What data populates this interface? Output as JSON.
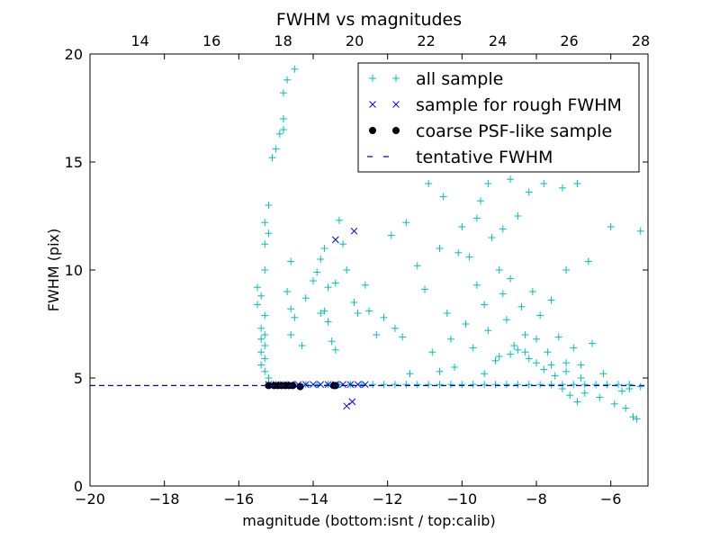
{
  "chart_data": {
    "type": "scatter",
    "title": "FWHM vs magnitudes",
    "xlabel": "magnitude (bottom:isnt / top:calib)",
    "ylabel": "FWHM (pix)",
    "xlim": [
      -20,
      -5
    ],
    "ylim": [
      0,
      20
    ],
    "top_xlim": [
      12.6,
      28.2
    ],
    "x_ticks": [
      -20,
      -18,
      -16,
      -14,
      -12,
      -10,
      -8,
      -6
    ],
    "x_tick_labels": [
      "−20",
      "−18",
      "−16",
      "−14",
      "−12",
      "−10",
      "−8",
      "−6"
    ],
    "top_ticks": [
      14,
      16,
      18,
      20,
      22,
      24,
      26,
      28
    ],
    "top_tick_labels": [
      "14",
      "16",
      "18",
      "20",
      "22",
      "24",
      "26",
      "28"
    ],
    "y_ticks": [
      0,
      5,
      10,
      15,
      20
    ],
    "y_tick_labels": [
      "0",
      "5",
      "10",
      "15",
      "20"
    ],
    "grid": false,
    "legend_position": "top-right",
    "series": [
      {
        "name": "all sample",
        "marker": "plus",
        "color": "#00BFBF",
        "points": [
          [
            -15.2,
            4.7
          ],
          [
            -15.0,
            4.7
          ],
          [
            -14.8,
            4.7
          ],
          [
            -14.5,
            4.7
          ],
          [
            -14.2,
            4.7
          ],
          [
            -13.9,
            4.7
          ],
          [
            -13.6,
            4.7
          ],
          [
            -13.3,
            4.7
          ],
          [
            -13.0,
            4.7
          ],
          [
            -12.7,
            4.7
          ],
          [
            -12.4,
            4.7
          ],
          [
            -12.1,
            4.7
          ],
          [
            -11.8,
            4.7
          ],
          [
            -11.5,
            4.7
          ],
          [
            -11.2,
            4.7
          ],
          [
            -10.9,
            4.7
          ],
          [
            -10.6,
            4.7
          ],
          [
            -10.3,
            4.7
          ],
          [
            -10.0,
            4.7
          ],
          [
            -9.7,
            4.7
          ],
          [
            -9.4,
            4.7
          ],
          [
            -9.1,
            4.7
          ],
          [
            -8.8,
            4.7
          ],
          [
            -8.5,
            4.7
          ],
          [
            -8.2,
            4.7
          ],
          [
            -7.9,
            4.7
          ],
          [
            -7.6,
            4.7
          ],
          [
            -7.3,
            4.7
          ],
          [
            -7.0,
            4.7
          ],
          [
            -6.7,
            4.7
          ],
          [
            -6.4,
            4.7
          ],
          [
            -6.1,
            4.7
          ],
          [
            -5.8,
            4.7
          ],
          [
            -5.5,
            4.7
          ],
          [
            -5.2,
            4.6
          ],
          [
            -15.5,
            9.2
          ],
          [
            -15.4,
            8.8
          ],
          [
            -15.5,
            8.4
          ],
          [
            -15.3,
            7.9
          ],
          [
            -15.4,
            7.3
          ],
          [
            -15.3,
            7.0
          ],
          [
            -15.4,
            6.8
          ],
          [
            -15.3,
            6.5
          ],
          [
            -15.4,
            6.2
          ],
          [
            -15.3,
            5.9
          ],
          [
            -15.4,
            5.6
          ],
          [
            -15.3,
            5.3
          ],
          [
            -15.2,
            5.0
          ],
          [
            -15.3,
            10.0
          ],
          [
            -15.3,
            12.2
          ],
          [
            -15.2,
            11.7
          ],
          [
            -15.3,
            11.2
          ],
          [
            -15.2,
            13.0
          ],
          [
            -15.1,
            15.2
          ],
          [
            -15.0,
            15.6
          ],
          [
            -14.9,
            16.3
          ],
          [
            -14.8,
            16.5
          ],
          [
            -14.8,
            17.0
          ],
          [
            -14.7,
            18.8
          ],
          [
            -14.8,
            18.2
          ],
          [
            -14.5,
            19.3
          ],
          [
            -14.6,
            10.4
          ],
          [
            -14.7,
            9.0
          ],
          [
            -14.6,
            8.2
          ],
          [
            -14.5,
            7.8
          ],
          [
            -14.6,
            7.0
          ],
          [
            -14.3,
            6.5
          ],
          [
            -14.2,
            8.7
          ],
          [
            -14.0,
            9.5
          ],
          [
            -13.9,
            9.9
          ],
          [
            -13.8,
            10.5
          ],
          [
            -13.7,
            11.0
          ],
          [
            -13.8,
            8.0
          ],
          [
            -13.7,
            8.1
          ],
          [
            -13.6,
            7.6
          ],
          [
            -13.5,
            6.7
          ],
          [
            -13.4,
            6.3
          ],
          [
            -13.6,
            9.2
          ],
          [
            -13.4,
            9.4
          ],
          [
            -13.3,
            12.3
          ],
          [
            -13.2,
            11.2
          ],
          [
            -13.1,
            10.0
          ],
          [
            -12.9,
            8.5
          ],
          [
            -12.6,
            9.3
          ],
          [
            -12.5,
            8.1
          ],
          [
            -12.3,
            7.0
          ],
          [
            -12.1,
            7.8
          ],
          [
            -11.9,
            11.6
          ],
          [
            -11.8,
            7.3
          ],
          [
            -11.6,
            6.9
          ],
          [
            -11.4,
            5.2
          ],
          [
            -11.2,
            10.2
          ],
          [
            -11.0,
            9.1
          ],
          [
            -10.9,
            14.0
          ],
          [
            -10.8,
            6.2
          ],
          [
            -10.6,
            11.0
          ],
          [
            -10.4,
            8.0
          ],
          [
            -10.3,
            6.8
          ],
          [
            -10.2,
            5.5
          ],
          [
            -10.0,
            12.0
          ],
          [
            -9.9,
            7.5
          ],
          [
            -9.8,
            10.6
          ],
          [
            -9.7,
            6.4
          ],
          [
            -9.6,
            9.3
          ],
          [
            -9.5,
            13.2
          ],
          [
            -9.4,
            8.4
          ],
          [
            -9.3,
            7.2
          ],
          [
            -9.2,
            11.5
          ],
          [
            -9.1,
            5.8
          ],
          [
            -9.0,
            10.0
          ],
          [
            -8.9,
            8.9
          ],
          [
            -8.8,
            7.7
          ],
          [
            -8.7,
            9.6
          ],
          [
            -8.6,
            6.5
          ],
          [
            -8.5,
            12.5
          ],
          [
            -8.4,
            8.3
          ],
          [
            -8.3,
            7.0
          ],
          [
            -8.2,
            5.9
          ],
          [
            -8.1,
            9.0
          ],
          [
            -8.0,
            6.8
          ],
          [
            -7.9,
            7.9
          ],
          [
            -7.8,
            5.4
          ],
          [
            -7.7,
            6.2
          ],
          [
            -7.6,
            8.6
          ],
          [
            -7.5,
            5.1
          ],
          [
            -7.4,
            6.9
          ],
          [
            -7.3,
            4.5
          ],
          [
            -7.2,
            5.7
          ],
          [
            -7.1,
            4.2
          ],
          [
            -7.0,
            6.4
          ],
          [
            -6.9,
            3.9
          ],
          [
            -6.8,
            5.0
          ],
          [
            -6.7,
            4.3
          ],
          [
            -6.6,
            10.4
          ],
          [
            -6.5,
            6.6
          ],
          [
            -6.3,
            4.1
          ],
          [
            -6.2,
            5.2
          ],
          [
            -6.0,
            12.0
          ],
          [
            -5.9,
            3.8
          ],
          [
            -5.7,
            4.4
          ],
          [
            -5.6,
            3.6
          ],
          [
            -5.5,
            4.5
          ],
          [
            -5.4,
            3.2
          ],
          [
            -5.3,
            3.1
          ],
          [
            -5.2,
            11.8
          ],
          [
            -9.3,
            14.0
          ],
          [
            -8.7,
            14.2
          ],
          [
            -8.2,
            13.6
          ],
          [
            -7.8,
            14.0
          ],
          [
            -7.3,
            13.8
          ],
          [
            -6.9,
            14.0
          ],
          [
            -9.6,
            12.4
          ],
          [
            -8.9,
            11.9
          ],
          [
            -7.2,
            10.0
          ],
          [
            -10.5,
            13.4
          ],
          [
            -11.5,
            12.2
          ],
          [
            -12.8,
            8.0
          ],
          [
            -10.1,
            10.8
          ],
          [
            -9.0,
            6.0
          ],
          [
            -8.7,
            6.1
          ],
          [
            -8.5,
            6.3
          ],
          [
            -8.3,
            6.2
          ],
          [
            -8.0,
            5.7
          ],
          [
            -7.6,
            5.6
          ],
          [
            -7.2,
            5.3
          ],
          [
            -6.8,
            5.6
          ],
          [
            -9.4,
            5.2
          ],
          [
            -10.6,
            5.3
          ]
        ]
      },
      {
        "name": "sample for rough FWHM",
        "marker": "x",
        "color": "#0000FF",
        "points": [
          [
            -15.2,
            4.7
          ],
          [
            -15.0,
            4.7
          ],
          [
            -14.8,
            4.7
          ],
          [
            -14.6,
            4.7
          ],
          [
            -14.4,
            4.7
          ],
          [
            -14.2,
            4.7
          ],
          [
            -14.0,
            4.7
          ],
          [
            -13.8,
            4.7
          ],
          [
            -13.6,
            4.7
          ],
          [
            -13.4,
            4.7
          ],
          [
            -13.2,
            4.7
          ],
          [
            -13.0,
            4.7
          ],
          [
            -12.8,
            4.7
          ],
          [
            -12.6,
            4.7
          ],
          [
            -13.4,
            11.4
          ],
          [
            -12.9,
            11.8
          ],
          [
            -13.1,
            3.7
          ],
          [
            -12.95,
            3.9
          ]
        ]
      },
      {
        "name": "coarse PSF-like sample",
        "marker": "dot",
        "color": "#000000",
        "points": [
          [
            -15.2,
            4.65
          ],
          [
            -15.05,
            4.65
          ],
          [
            -14.95,
            4.65
          ],
          [
            -14.85,
            4.65
          ],
          [
            -14.75,
            4.65
          ],
          [
            -14.65,
            4.65
          ],
          [
            -14.55,
            4.65
          ],
          [
            -14.35,
            4.6
          ],
          [
            -13.45,
            4.65
          ],
          [
            -13.4,
            4.65
          ]
        ]
      },
      {
        "name": "tentative FWHM",
        "marker": "dashed-line",
        "color": "#0000FF",
        "y": 4.65
      }
    ]
  }
}
